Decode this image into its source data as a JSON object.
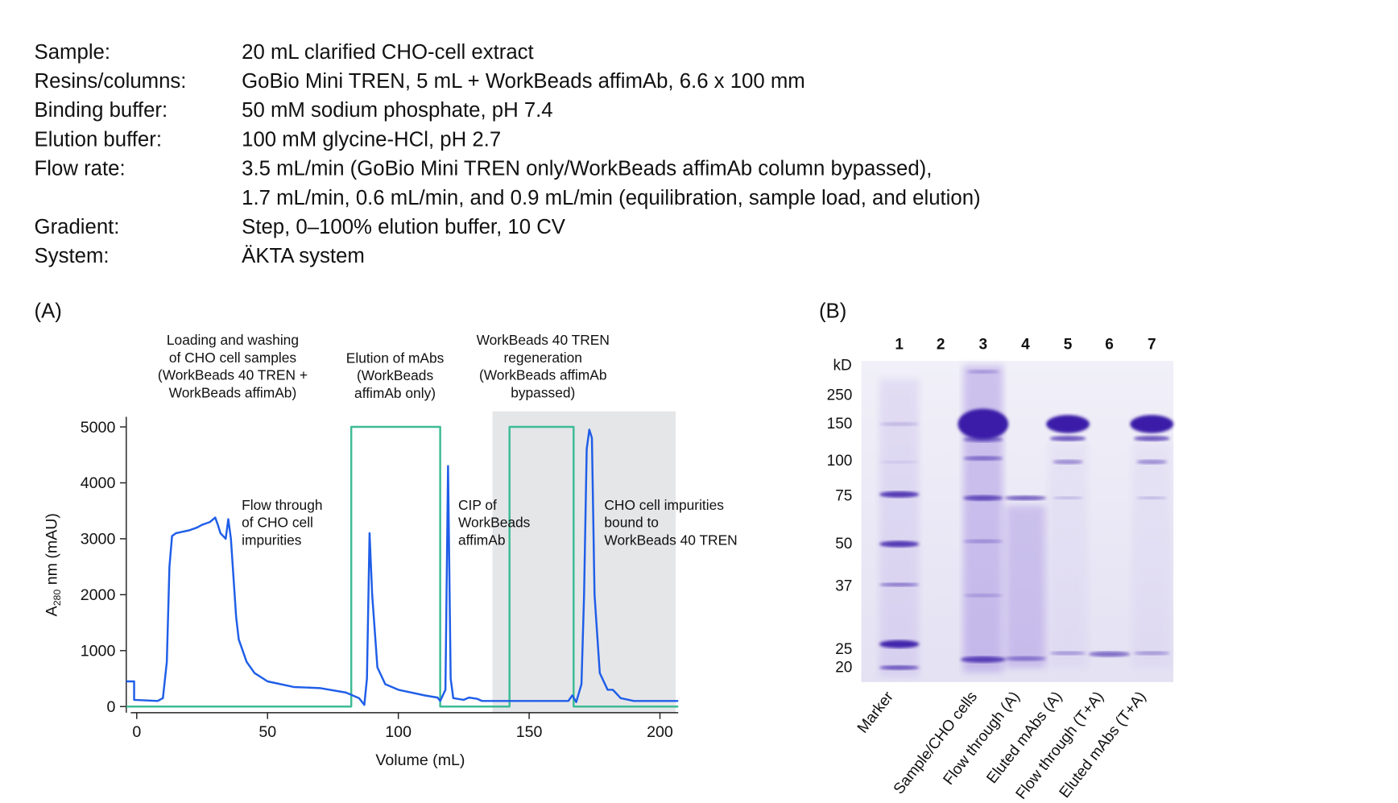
{
  "parameters": [
    {
      "label": "Sample:",
      "value": [
        "20 mL clarified CHO-cell extract"
      ]
    },
    {
      "label": "Resins/columns:",
      "value": [
        "GoBio Mini TREN, 5 mL + WorkBeads affimAb, 6.6 x 100 mm"
      ]
    },
    {
      "label": "Binding buffer:",
      "value": [
        "50 mM sodium phosphate, pH 7.4"
      ]
    },
    {
      "label": "Elution buffer:",
      "value": [
        "100 mM glycine-HCl, pH 2.7"
      ]
    },
    {
      "label": "Flow rate:",
      "value": [
        "3.5 mL/min (GoBio Mini TREN only/WorkBeads affimAb column bypassed),",
        "1.7 mL/min, 0.6 mL/min, and 0.9 mL/min (equilibration, sample load, and elution)"
      ]
    },
    {
      "label": "Gradient:",
      "value": [
        "Step, 0–100% elution buffer, 10 CV"
      ]
    },
    {
      "label": "System:",
      "value": [
        "ÄKTA system"
      ]
    }
  ],
  "chart_data": {
    "type": "line",
    "panel_label": "(A)",
    "xlabel": "Volume (mL)",
    "ylabel_main": "A",
    "ylabel_sub": "280",
    "ylabel_rest": " nm (mAU)",
    "xlim": [
      -4,
      207
    ],
    "ylim": [
      -110,
      5180
    ],
    "xticks": [
      0,
      50,
      100,
      150,
      200
    ],
    "yticks": [
      0,
      1000,
      2000,
      3000,
      4000,
      5000
    ],
    "shaded_xrange": [
      136,
      206
    ],
    "shade_color": "#e5e6e8",
    "annotations": [
      [
        "Loading and washing",
        "of CHO cell samples",
        "(WorkBeads 40 TREN +",
        "WorkBeads affimAb)"
      ],
      [
        "Elution of mAbs",
        "(WorkBeads",
        "affimAb only)"
      ],
      [
        "WorkBeads 40 TREN",
        "regeneration",
        "(WorkBeads affimAb",
        "bypassed)"
      ],
      [
        "Flow through",
        "of CHO cell",
        "impurities"
      ],
      [
        "CIP of",
        "WorkBeads",
        "affimAb"
      ],
      [
        "CHO cell impurities",
        "bound to",
        "WorkBeads 40 TREN"
      ]
    ],
    "series": [
      {
        "color": "#1f5ee8",
        "x": [
          -4,
          -1,
          -1,
          8,
          10,
          11.5,
          12.5,
          13.5,
          15,
          17,
          20,
          23,
          25,
          28,
          30,
          31,
          32,
          33,
          34,
          35,
          36,
          37,
          38,
          39,
          42,
          45,
          50,
          60,
          70,
          80,
          85,
          87,
          88,
          89,
          90,
          92,
          95,
          100,
          110,
          115,
          116,
          118,
          119,
          120,
          121,
          125,
          127,
          130,
          132,
          140,
          165,
          166.5,
          168,
          170,
          171,
          172,
          173,
          174,
          175,
          177,
          180,
          182,
          183,
          185,
          190,
          207
        ],
        "values": [
          450,
          450,
          120,
          100,
          150,
          800,
          2500,
          3050,
          3100,
          3120,
          3150,
          3200,
          3250,
          3300,
          3380,
          3250,
          3100,
          3050,
          3000,
          3350,
          3000,
          2300,
          1600,
          1200,
          800,
          600,
          450,
          350,
          330,
          250,
          150,
          30,
          500,
          3100,
          2000,
          700,
          400,
          300,
          200,
          160,
          100,
          300,
          4300,
          500,
          150,
          120,
          160,
          140,
          100,
          100,
          100,
          200,
          80,
          400,
          2000,
          4600,
          4950,
          4800,
          2000,
          600,
          300,
          300,
          250,
          150,
          100,
          100
        ]
      },
      {
        "color": "#3dbb94",
        "x": [
          -4,
          82,
          82,
          116,
          116,
          142.5,
          142.5,
          167,
          167,
          207
        ],
        "values": [
          0,
          0,
          5000,
          5000,
          0,
          0,
          5000,
          5000,
          0,
          0
        ]
      }
    ]
  },
  "panel_b": {
    "panel_label": "(B)",
    "unit": "kD",
    "mw_labels": [
      "250",
      "150",
      "100",
      "75",
      "50",
      "37",
      "25",
      "20"
    ],
    "lane_numbers": [
      "1",
      "2",
      "3",
      "4",
      "5",
      "6",
      "7"
    ],
    "lane_names": [
      "Marker",
      null,
      "Sample/CHO cells",
      "Flow through (A)",
      "Eluted mAbs (A)",
      "Flow through (T+A)",
      "Eluted mAbs (T+A)"
    ]
  }
}
